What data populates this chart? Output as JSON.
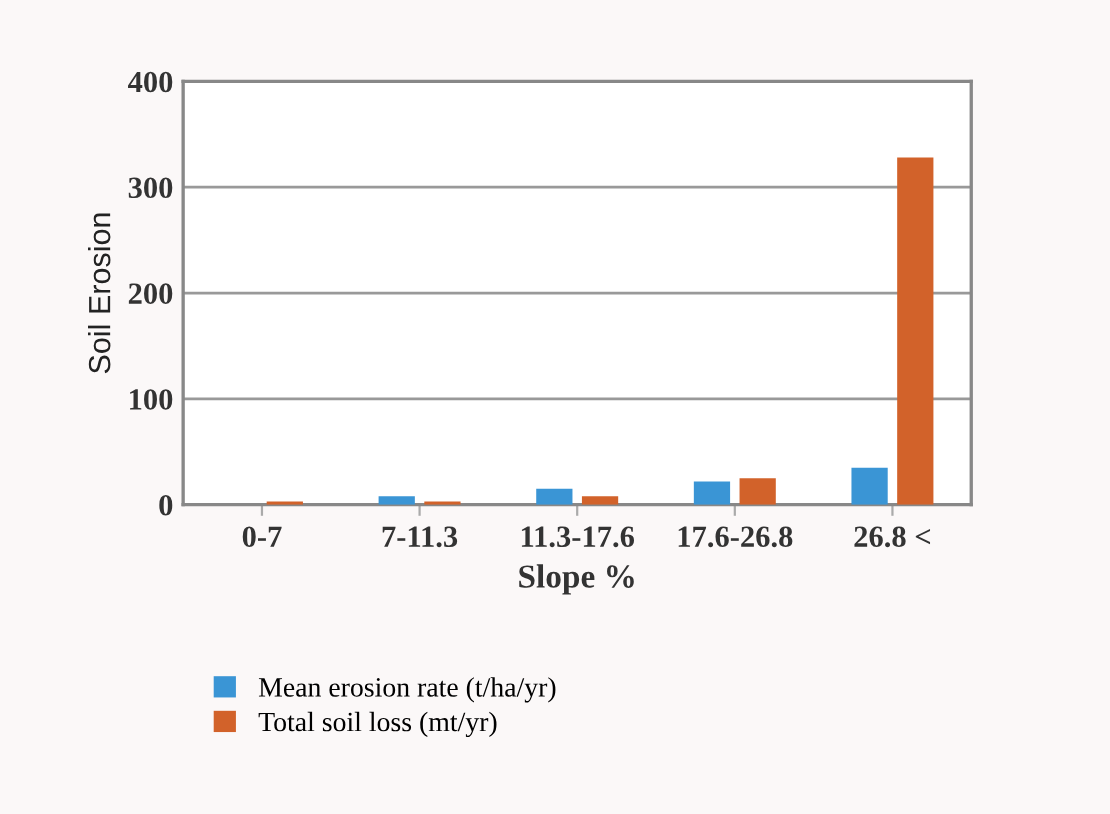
{
  "chart_data": {
    "type": "bar",
    "xlabel": "Slope %",
    "ylabel": "Soil Erosion",
    "categories": [
      "0-7",
      "7-11.3",
      "11.3-17.6",
      "17.6-26.8",
      "26.8 <"
    ],
    "series": [
      {
        "name": "Mean erosion rate (t/ha/yr)",
        "color": "#3a95d5",
        "values": [
          0,
          8,
          15,
          22,
          35
        ]
      },
      {
        "name": "Total soil loss (mt/yr)",
        "color": "#d2622a",
        "values": [
          3,
          3,
          8,
          25,
          328
        ]
      }
    ],
    "ylim": [
      0,
      400
    ],
    "yticks": [
      0,
      100,
      200,
      300,
      400
    ],
    "grid": "y",
    "legend": "bottom"
  }
}
